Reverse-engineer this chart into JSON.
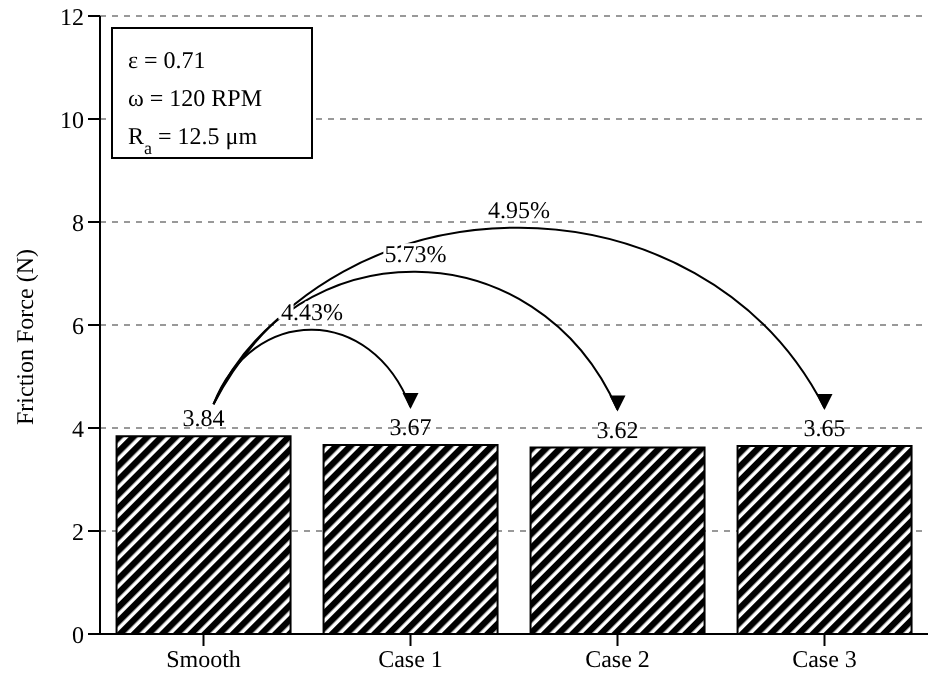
{
  "chart_data": {
    "type": "bar",
    "ylabel": "Friction Force (N)",
    "categories": [
      "Smooth",
      "Case 1",
      "Case 2",
      "Case 3"
    ],
    "values": [
      3.84,
      3.67,
      3.62,
      3.65
    ],
    "color": "#000000",
    "ylim": [
      0,
      12
    ],
    "yticks": [
      0,
      2,
      4,
      6,
      8,
      10,
      12
    ],
    "grid": "y",
    "data_labels": true,
    "annotations": [
      "ε = 0.71",
      "ω = 120 RPM",
      "R$_{a}$ = 12.5 μm",
      "4.43%",
      "5.73%",
      "4.95%"
    ]
  }
}
